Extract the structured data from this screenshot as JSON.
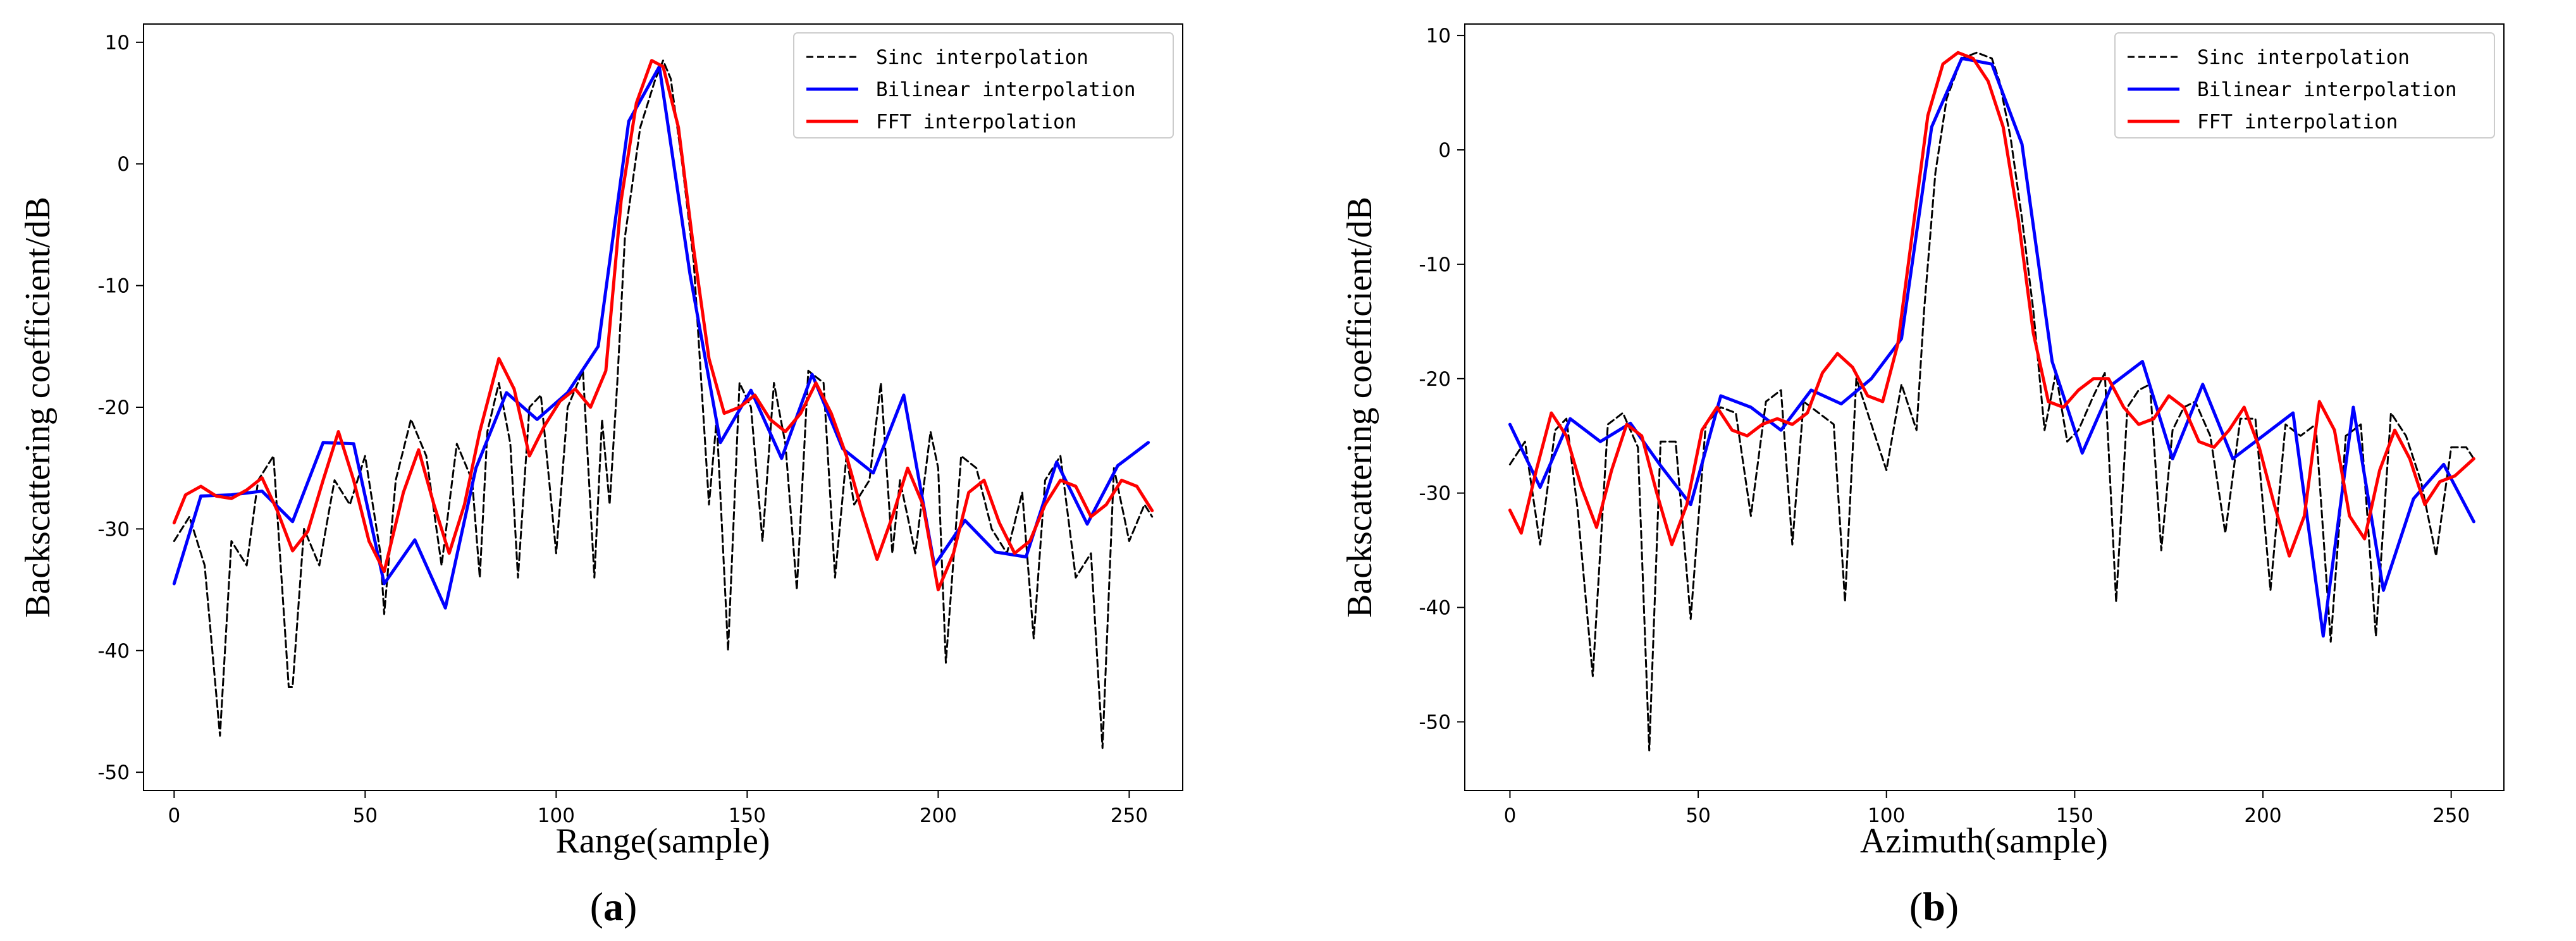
{
  "chart_data": [
    {
      "type": "line",
      "caption_open": "(",
      "caption_letter": "a",
      "caption_close": ")",
      "xlabel": "Range(sample)",
      "ylabel": "Backscattering coefficient/dB",
      "xlim": [
        -8,
        264
      ],
      "ylim": [
        -51.5,
        11.5
      ],
      "xticks": [
        0,
        50,
        100,
        150,
        200,
        250
      ],
      "yticks": [
        10,
        0,
        -10,
        -20,
        -30,
        -40,
        -50
      ],
      "legend_position": "top-right",
      "series": [
        {
          "name": "Sinc interpolation",
          "color": "#000000",
          "style": "dashed",
          "x": [
            0,
            4,
            8,
            12,
            15,
            19,
            22,
            26,
            30,
            31,
            34,
            38,
            42,
            46,
            50,
            54,
            55,
            58,
            62,
            66,
            70,
            74,
            78,
            80,
            82,
            85,
            88,
            90,
            93,
            96,
            100,
            103,
            107,
            110,
            112,
            114,
            116,
            118,
            122,
            126,
            128,
            130,
            133,
            136,
            138,
            140,
            142,
            145,
            148,
            151,
            154,
            157,
            160,
            163,
            166,
            170,
            173,
            176,
            178,
            182,
            185,
            188,
            190,
            194,
            198,
            200,
            202,
            206,
            210,
            214,
            218,
            222,
            225,
            228,
            232,
            236,
            240,
            243,
            246,
            250,
            254,
            256
          ],
          "y": [
            -31,
            -29,
            -33,
            -47,
            -31,
            -33,
            -26,
            -24,
            -43,
            -43,
            -30,
            -33,
            -26,
            -28,
            -24,
            -32,
            -37,
            -26,
            -21,
            -24,
            -33,
            -23,
            -26,
            -34,
            -22,
            -18,
            -23,
            -34,
            -20,
            -19,
            -32,
            -20,
            -17,
            -34,
            -21,
            -28,
            -18,
            -6,
            3,
            7,
            8.5,
            7,
            0,
            -8,
            -18,
            -28,
            -21,
            -40,
            -18,
            -20,
            -31,
            -18,
            -23,
            -35,
            -17,
            -18,
            -34,
            -24,
            -28,
            -26,
            -18,
            -32,
            -26,
            -32,
            -22,
            -25,
            -41,
            -24,
            -25,
            -30,
            -32,
            -27,
            -39,
            -26,
            -24,
            -34,
            -32,
            -48,
            -25,
            -31,
            -28,
            -29
          ]
        },
        {
          "name": "Bilinear interpolation",
          "color": "#0000ff",
          "style": "solid",
          "x": [
            0,
            7,
            15,
            23,
            31,
            39,
            47,
            55,
            63,
            71,
            79,
            87,
            95,
            103,
            111,
            119,
            127,
            135,
            143,
            151,
            159,
            167,
            175,
            183,
            191,
            199,
            207,
            215,
            223,
            231,
            239,
            247,
            255
          ],
          "y": [
            -34.5,
            -27.3,
            -27.2,
            -26.9,
            -29.4,
            -22.9,
            -23.0,
            -34.5,
            -30.9,
            -36.5,
            -25.0,
            -18.8,
            -21.0,
            -18.8,
            -15.0,
            3.5,
            8.0,
            -9.0,
            -22.9,
            -18.6,
            -24.2,
            -17.3,
            -23.4,
            -25.4,
            -19.0,
            -33.0,
            -29.3,
            -31.9,
            -32.3,
            -24.5,
            -29.6,
            -24.8,
            -22.9
          ]
        },
        {
          "name": "FFT interpolation",
          "color": "#ff0000",
          "style": "solid",
          "x": [
            0,
            3,
            7,
            11,
            15,
            19,
            23,
            27,
            31,
            35,
            39,
            43,
            47,
            51,
            55,
            60,
            64,
            68,
            72,
            76,
            80,
            85,
            89,
            93,
            97,
            101,
            105,
            109,
            113,
            117,
            121,
            125,
            128,
            132,
            136,
            140,
            144,
            148,
            152,
            156,
            160,
            164,
            168,
            172,
            176,
            180,
            184,
            188,
            192,
            196,
            200,
            204,
            208,
            212,
            216,
            220,
            224,
            228,
            232,
            236,
            240,
            244,
            248,
            252,
            256
          ],
          "y": [
            -29.5,
            -27.2,
            -26.5,
            -27.3,
            -27.5,
            -26.8,
            -25.8,
            -28.5,
            -31.8,
            -30.2,
            -26.0,
            -22.0,
            -26.0,
            -31.0,
            -33.5,
            -27.0,
            -23.5,
            -28.0,
            -32.0,
            -28.0,
            -22.0,
            -16.0,
            -18.5,
            -24.0,
            -21.5,
            -19.5,
            -18.5,
            -20.0,
            -17.0,
            -3.0,
            5.0,
            8.5,
            8.0,
            3.0,
            -7.0,
            -16.0,
            -20.5,
            -20.0,
            -19.0,
            -21.0,
            -22.0,
            -20.5,
            -18.0,
            -20.5,
            -24.0,
            -28.5,
            -32.5,
            -29.0,
            -25.0,
            -28.0,
            -35.0,
            -32.0,
            -27.0,
            -26.0,
            -29.5,
            -32.0,
            -31.0,
            -28.0,
            -26.0,
            -26.5,
            -29.0,
            -28.0,
            -26.0,
            -26.5,
            -28.5
          ]
        }
      ]
    },
    {
      "type": "line",
      "caption_open": "(",
      "caption_letter": "b",
      "caption_close": ")",
      "xlabel": "Azimuth(sample)",
      "ylabel": "Backscattering coefficient/dB",
      "xlim": [
        -12,
        264
      ],
      "ylim": [
        -56,
        11
      ],
      "xticks": [
        0,
        50,
        100,
        150,
        200,
        250
      ],
      "yticks": [
        10,
        0,
        -10,
        -20,
        -30,
        -40,
        -50
      ],
      "legend_position": "top-right",
      "series": [
        {
          "name": "Sinc interpolation",
          "color": "#000000",
          "style": "dashed",
          "x": [
            0,
            4,
            8,
            12,
            15,
            18,
            22,
            26,
            30,
            34,
            37,
            40,
            44,
            48,
            52,
            56,
            60,
            64,
            68,
            72,
            75,
            78,
            82,
            86,
            89,
            92,
            96,
            100,
            104,
            108,
            110,
            113,
            116,
            120,
            124,
            128,
            130,
            133,
            136,
            139,
            142,
            145,
            148,
            151,
            155,
            158,
            161,
            164,
            167,
            170,
            173,
            176,
            179,
            182,
            186,
            190,
            194,
            198,
            202,
            206,
            210,
            214,
            218,
            222,
            226,
            230,
            234,
            238,
            242,
            246,
            250,
            254,
            256
          ],
          "y": [
            -27.5,
            -25.5,
            -34.5,
            -24.5,
            -23.5,
            -31.5,
            -46,
            -24,
            -23,
            -26,
            -52.5,
            -25.5,
            -25.5,
            -41,
            -24,
            -22.5,
            -23,
            -32,
            -22,
            -21,
            -34.5,
            -22,
            -23,
            -24,
            -39.5,
            -20,
            -24,
            -28,
            -20.5,
            -24.5,
            -14,
            -2,
            4.5,
            8,
            8.5,
            8,
            6,
            1,
            -6,
            -14,
            -24.5,
            -19.5,
            -25.5,
            -24.5,
            -21.5,
            -19.5,
            -39.5,
            -22.5,
            -21,
            -20.5,
            -35,
            -24.5,
            -22.5,
            -22,
            -25,
            -33.5,
            -23.5,
            -23.5,
            -38.5,
            -24,
            -25,
            -24,
            -43,
            -25,
            -24,
            -42.5,
            -23,
            -25,
            -29,
            -35.5,
            -26,
            -26,
            -27
          ]
        },
        {
          "name": "Bilinear interpolation",
          "color": "#0000ff",
          "style": "solid",
          "x": [
            0,
            8,
            16,
            24,
            32,
            40,
            48,
            56,
            64,
            72,
            80,
            88,
            96,
            104,
            112,
            120,
            128,
            136,
            144,
            152,
            160,
            168,
            176,
            184,
            192,
            200,
            208,
            216,
            224,
            232,
            240,
            248,
            256
          ],
          "y": [
            -24,
            -29.5,
            -23.5,
            -25.5,
            -23.9,
            -27.6,
            -31.0,
            -21.5,
            -22.5,
            -24.5,
            -21,
            -22.2,
            -20.0,
            -16.5,
            2.0,
            8.0,
            7.5,
            0.5,
            -18.5,
            -26.5,
            -20.5,
            -18.5,
            -27.0,
            -20.5,
            -27.0,
            -25.0,
            -23.0,
            -42.5,
            -22.5,
            -38.5,
            -30.5,
            -27.5,
            -32.5
          ]
        },
        {
          "name": "FFT interpolation",
          "color": "#ff0000",
          "style": "solid",
          "x": [
            0,
            3,
            7,
            11,
            15,
            19,
            23,
            27,
            31,
            35,
            39,
            43,
            47,
            51,
            55,
            59,
            63,
            67,
            71,
            75,
            79,
            83,
            87,
            91,
            95,
            99,
            103,
            107,
            111,
            115,
            119,
            123,
            127,
            131,
            135,
            139,
            143,
            147,
            151,
            155,
            159,
            163,
            167,
            171,
            175,
            179,
            183,
            187,
            191,
            195,
            199,
            203,
            207,
            211,
            215,
            219,
            223,
            227,
            231,
            235,
            239,
            243,
            247,
            251,
            256
          ],
          "y": [
            -31.5,
            -33.5,
            -28,
            -23,
            -25,
            -29.5,
            -33,
            -28,
            -24,
            -25,
            -30,
            -34.5,
            -31,
            -24.5,
            -22.5,
            -24.5,
            -25,
            -24,
            -23.5,
            -24,
            -23,
            -19.5,
            -17.8,
            -19,
            -21.5,
            -22,
            -17,
            -7,
            3,
            7.5,
            8.5,
            8,
            6,
            2,
            -6,
            -16,
            -22,
            -22.5,
            -21,
            -20,
            -20,
            -22.5,
            -24,
            -23.5,
            -21.5,
            -22.5,
            -25.5,
            -26,
            -24.5,
            -22.5,
            -26,
            -31,
            -35.5,
            -32,
            -22,
            -24.5,
            -32,
            -34,
            -28,
            -24.5,
            -27,
            -31,
            -29,
            -28.5,
            -27
          ]
        }
      ]
    }
  ]
}
